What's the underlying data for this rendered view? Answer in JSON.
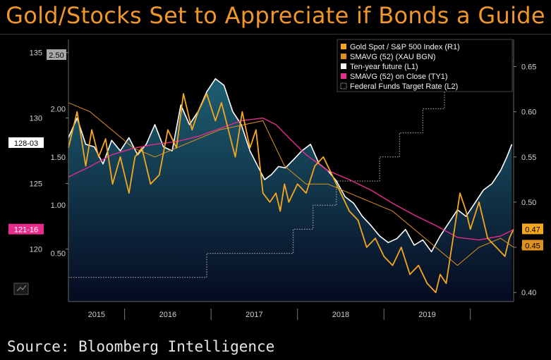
{
  "title": "Gold/Stocks Set to Appreciate if Bonds a Guide",
  "source": "Source: Bloomberg Intelligence",
  "colors": {
    "background": "#000000",
    "title": "#f0962a",
    "gold_ratio": "#f5a81f",
    "gold_sma": "#e0901e",
    "ten_year": "#ffffff",
    "ten_year_sma": "#e62c8c",
    "fed_funds": "#bfbfbf",
    "area_top": "#1e5f72",
    "area_bottom": "#050a20"
  },
  "chart_data": {
    "type": "line",
    "x_ticks": [
      "2015",
      "2016",
      "2017",
      "2018",
      "2019"
    ],
    "left_outer_ticks": [
      "135",
      "130",
      "125",
      "120"
    ],
    "left_inner_ticks": [
      "2.00",
      "1.50",
      "1.00",
      "0.50"
    ],
    "right_ticks": [
      "0.65",
      "0.60",
      "0.55",
      "0.50",
      "0.45",
      "0.40"
    ],
    "badges": {
      "fed_rate": "2.50",
      "ten_year_last": "128-03",
      "ten_year_sma_last": "121-16",
      "gold_last": "0.47",
      "gold_sma_last": "0.45"
    },
    "legend": [
      {
        "label": "Gold Spot / S&P 500 Index (R1)",
        "color": "#f5a81f"
      },
      {
        "label": "SMAVG (52) (XAU BGN)",
        "color": "#e0901e"
      },
      {
        "label": "Ten-year future (L1)",
        "color": "#ffffff"
      },
      {
        "label": "SMAVG (52) on Close (TY1)",
        "color": "#e62c8c"
      },
      {
        "label": "Federal Funds Target Rate (L2)",
        "color": "#bfbfbf"
      }
    ],
    "series": [
      {
        "name": "Gold Spot / S&P 500 Index (R1)",
        "axis": "right",
        "x": [
          2014.35,
          2014.45,
          2014.55,
          2014.62,
          2014.7,
          2014.78,
          2014.86,
          2014.95,
          2015.05,
          2015.12,
          2015.2,
          2015.3,
          2015.4,
          2015.5,
          2015.6,
          2015.68,
          2015.78,
          2015.85,
          2015.95,
          2016.05,
          2016.12,
          2016.2,
          2016.28,
          2016.36,
          2016.45,
          2016.52,
          2016.6,
          2016.68,
          2016.75,
          2016.8,
          2016.85,
          2016.9,
          2017.0,
          2017.1,
          2017.2,
          2017.3,
          2017.4,
          2017.5,
          2017.6,
          2017.7,
          2017.8,
          2017.9,
          2018.0,
          2018.1,
          2018.2,
          2018.3,
          2018.4,
          2018.5,
          2018.6,
          2018.65,
          2018.72,
          2018.8,
          2018.88,
          2018.95,
          2019.0,
          2019.1,
          2019.2,
          2019.3,
          2019.4,
          2019.45,
          2019.5
        ],
        "y": [
          0.56,
          0.6,
          0.54,
          0.58,
          0.55,
          0.57,
          0.52,
          0.55,
          0.51,
          0.55,
          0.56,
          0.52,
          0.53,
          0.58,
          0.56,
          0.62,
          0.58,
          0.6,
          0.62,
          0.59,
          0.61,
          0.58,
          0.55,
          0.6,
          0.56,
          0.58,
          0.51,
          0.5,
          0.51,
          0.49,
          0.52,
          0.5,
          0.52,
          0.51,
          0.54,
          0.55,
          0.53,
          0.51,
          0.49,
          0.48,
          0.45,
          0.46,
          0.44,
          0.43,
          0.45,
          0.42,
          0.43,
          0.41,
          0.4,
          0.42,
          0.41,
          0.46,
          0.51,
          0.49,
          0.47,
          0.5,
          0.46,
          0.45,
          0.44,
          0.46,
          0.47
        ]
      },
      {
        "name": "SMAVG (52) (XAU BGN)",
        "axis": "right",
        "x": [
          2014.35,
          2014.6,
          2014.85,
          2015.1,
          2015.35,
          2015.6,
          2015.85,
          2016.1,
          2016.35,
          2016.6,
          2016.85,
          2017.1,
          2017.35,
          2017.6,
          2017.85,
          2018.1,
          2018.35,
          2018.6,
          2018.85,
          2019.1,
          2019.35,
          2019.5
        ],
        "y": [
          0.61,
          0.6,
          0.58,
          0.56,
          0.55,
          0.56,
          0.57,
          0.58,
          0.585,
          0.59,
          0.54,
          0.52,
          0.52,
          0.51,
          0.5,
          0.49,
          0.47,
          0.45,
          0.43,
          0.45,
          0.46,
          0.45
        ]
      },
      {
        "name": "Ten-year future (L1)",
        "axis": "left",
        "x": [
          2014.35,
          2014.45,
          2014.55,
          2014.65,
          2014.75,
          2014.85,
          2014.95,
          2015.05,
          2015.15,
          2015.25,
          2015.35,
          2015.45,
          2015.55,
          2015.65,
          2015.75,
          2015.85,
          2015.95,
          2016.05,
          2016.15,
          2016.25,
          2016.35,
          2016.45,
          2016.55,
          2016.62,
          2016.7,
          2016.78,
          2016.86,
          2016.95,
          2017.05,
          2017.15,
          2017.25,
          2017.35,
          2017.45,
          2017.55,
          2017.65,
          2017.75,
          2017.85,
          2017.95,
          2018.05,
          2018.15,
          2018.25,
          2018.35,
          2018.45,
          2018.55,
          2018.65,
          2018.75,
          2018.85,
          2018.95,
          2019.05,
          2019.15,
          2019.25,
          2019.35,
          2019.42,
          2019.48
        ],
        "y": [
          128.5,
          130,
          128,
          127.8,
          126.5,
          128.3,
          127.5,
          128.5,
          127.2,
          128,
          129.5,
          127.8,
          127.5,
          131,
          129.5,
          130.5,
          132,
          133,
          132.5,
          130.5,
          129.5,
          127.5,
          126.2,
          125.3,
          125.7,
          126.3,
          126.2,
          126.8,
          127.5,
          128,
          126.5,
          126,
          125.2,
          124,
          123.5,
          122.5,
          121.8,
          121,
          120.5,
          120.8,
          121.5,
          120.3,
          120.7,
          119.8,
          121,
          122,
          123,
          122.5,
          123.5,
          124.5,
          125,
          126,
          127,
          128
        ]
      },
      {
        "name": "SMAVG (52) on Close (TY1)",
        "axis": "left",
        "x": [
          2014.35,
          2014.6,
          2014.85,
          2015.1,
          2015.35,
          2015.6,
          2015.85,
          2016.1,
          2016.35,
          2016.6,
          2016.75,
          2016.9,
          2017.1,
          2017.35,
          2017.6,
          2017.85,
          2018.1,
          2018.35,
          2018.6,
          2018.85,
          2019.1,
          2019.35,
          2019.5
        ],
        "y": [
          125.5,
          126.3,
          127.2,
          127.7,
          128,
          128.2,
          128.6,
          129.2,
          129.8,
          130,
          129.5,
          128.5,
          127.2,
          126,
          125.3,
          124.5,
          123.5,
          122.6,
          121.8,
          120.9,
          120.7,
          121,
          121.5
        ]
      },
      {
        "name": "Federal Funds Target Rate (L2)",
        "axis": "left_inner",
        "step": true,
        "x": [
          2014.35,
          2015.95,
          2016.95,
          2017.18,
          2017.45,
          2017.95,
          2018.18,
          2018.45,
          2018.7,
          2018.97,
          2019.5
        ],
        "y": [
          0.25,
          0.5,
          0.75,
          1.0,
          1.25,
          1.5,
          1.75,
          2.0,
          2.25,
          2.5,
          2.5
        ]
      }
    ],
    "x_range": [
      2014.35,
      2019.5
    ],
    "left_ylim": [
      116,
      136
    ],
    "left_inner_ylim": [
      0.0,
      2.5
    ],
    "right_ylim": [
      0.39,
      0.68
    ],
    "grid": false,
    "legend_position": "top-right"
  }
}
